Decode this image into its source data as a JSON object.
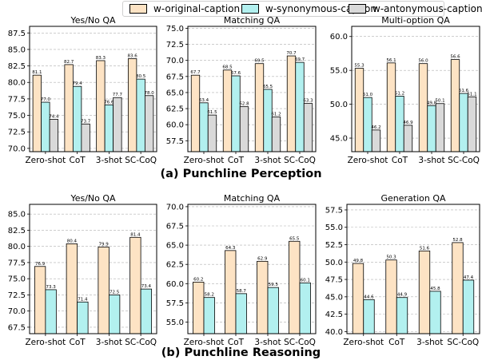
{
  "legend": {
    "items": [
      {
        "label": "w-original-caption",
        "color": "#fde3c4"
      },
      {
        "label": "w-synonymous-caption",
        "color": "#b2f0ef"
      },
      {
        "label": "w-antonymous-caption",
        "color": "#d9d9d9"
      }
    ]
  },
  "sections": [
    {
      "label": "(a) Punchline Perception"
    },
    {
      "label": "(b) Punchline Reasoning"
    }
  ],
  "chart_data": [
    {
      "type": "bar",
      "title": "Yes/No QA",
      "categories": [
        "Zero-shot",
        "CoT",
        "3-shot",
        "SC-CoQ"
      ],
      "ylim": [
        69.5,
        88.5
      ],
      "yticks": [
        70.0,
        72.5,
        75.0,
        77.5,
        80.0,
        82.5,
        85.0,
        87.5
      ],
      "series": [
        {
          "name": "w-original-caption",
          "values": [
            81.1,
            82.7,
            83.3,
            83.6
          ],
          "labels": [
            "81.1",
            "82.7",
            "83.3",
            "83.6"
          ]
        },
        {
          "name": "w-synonymous-caption",
          "values": [
            77.0,
            79.4,
            76.6,
            80.5
          ],
          "labels": [
            "77.0",
            "79.4",
            "76.6",
            "80.5"
          ]
        },
        {
          "name": "w-antonymous-caption",
          "values": [
            74.4,
            73.7,
            77.7,
            78.0
          ],
          "labels": [
            "74.4",
            "73.7",
            "77.7",
            "78.0"
          ]
        }
      ]
    },
    {
      "type": "bar",
      "title": "Matching QA",
      "categories": [
        "Zero-shot",
        "CoT",
        "3-shot",
        "SC-CoQ"
      ],
      "ylim": [
        55.8,
        75.3
      ],
      "yticks": [
        57.5,
        60.0,
        62.5,
        65.0,
        67.5,
        70.0,
        72.5,
        75.0
      ],
      "series": [
        {
          "name": "w-original-caption",
          "values": [
            67.7,
            68.5,
            69.5,
            70.7
          ],
          "labels": [
            "67.7",
            "68.5",
            "69.5",
            "70.7"
          ]
        },
        {
          "name": "w-synonymous-caption",
          "values": [
            63.4,
            67.6,
            65.5,
            69.7
          ],
          "labels": [
            "63.4",
            "67.6",
            "65.5",
            "69.7"
          ]
        },
        {
          "name": "w-antonymous-caption",
          "values": [
            61.5,
            62.8,
            61.2,
            63.3
          ],
          "labels": [
            "61.5",
            "62.8",
            "61.2",
            "63.3"
          ]
        }
      ]
    },
    {
      "type": "bar",
      "title": "Multi-option QA",
      "categories": [
        "Zero-shot",
        "CoT",
        "3-shot",
        "SC-CoQ"
      ],
      "ylim": [
        43.0,
        61.5
      ],
      "yticks": [
        45.0,
        50.0,
        55.0,
        60.0
      ],
      "series": [
        {
          "name": "w-original-caption",
          "values": [
            55.3,
            56.1,
            56.0,
            56.6
          ],
          "labels": [
            "55.3",
            "56.1",
            "56.0",
            "56.6"
          ]
        },
        {
          "name": "w-synonymous-caption",
          "values": [
            51.0,
            51.2,
            49.8,
            51.6
          ],
          "labels": [
            "51.0",
            "51.2",
            "49.8",
            "51.6"
          ]
        },
        {
          "name": "w-antonymous-caption",
          "values": [
            46.2,
            46.9,
            50.1,
            51.1
          ],
          "labels": [
            "46.2",
            "46.9",
            "50.1",
            "51.1"
          ]
        }
      ]
    },
    {
      "type": "bar",
      "title": "Yes/No QA",
      "categories": [
        "Zero-shot",
        "CoT",
        "3-shot",
        "SC-CoQ"
      ],
      "ylim": [
        66.5,
        86.5
      ],
      "yticks": [
        67.5,
        70.0,
        72.5,
        75.0,
        77.5,
        80.0,
        82.5,
        85.0
      ],
      "series": [
        {
          "name": "w-original-caption",
          "values": [
            76.9,
            80.4,
            79.9,
            81.4
          ],
          "labels": [
            "76.9",
            "80.4",
            "79.9",
            "81.4"
          ]
        },
        {
          "name": "w-synonymous-caption",
          "values": [
            73.3,
            71.4,
            72.5,
            73.4
          ],
          "labels": [
            "73.3",
            "71.4",
            "72.5",
            "73.4"
          ]
        }
      ]
    },
    {
      "type": "bar",
      "title": "Matching QA",
      "categories": [
        "Zero-shot",
        "CoT",
        "3-shot",
        "SC-CoQ"
      ],
      "ylim": [
        53.5,
        70.3
      ],
      "yticks": [
        55.0,
        57.5,
        60.0,
        62.5,
        65.0,
        67.5,
        70.0
      ],
      "series": [
        {
          "name": "w-original-caption",
          "values": [
            60.2,
            64.3,
            62.9,
            65.5
          ],
          "labels": [
            "60.2",
            "64.3",
            "62.9",
            "65.5"
          ]
        },
        {
          "name": "w-synonymous-caption",
          "values": [
            58.2,
            58.7,
            59.5,
            60.1
          ],
          "labels": [
            "58.2",
            "58.7",
            "59.5",
            "60.1"
          ]
        }
      ]
    },
    {
      "type": "bar",
      "title": "Generation QA",
      "categories": [
        "Zero-shot",
        "CoT",
        "3-shot",
        "SC-CoQ"
      ],
      "ylim": [
        39.7,
        58.3
      ],
      "yticks": [
        40.0,
        42.5,
        45.0,
        47.5,
        50.0,
        52.5,
        55.0,
        57.5
      ],
      "series": [
        {
          "name": "w-original-caption",
          "values": [
            49.8,
            50.3,
            51.6,
            52.8
          ],
          "labels": [
            "49.8",
            "50.3",
            "51.6",
            "52.8"
          ]
        },
        {
          "name": "w-synonymous-caption",
          "values": [
            44.6,
            44.9,
            45.8,
            47.4
          ],
          "labels": [
            "44.6",
            "44.9",
            "45.8",
            "47.4"
          ]
        }
      ]
    }
  ]
}
